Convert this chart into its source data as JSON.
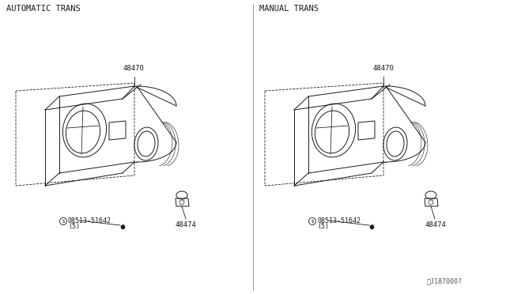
{
  "bg_color": "#ffffff",
  "line_color": "#1a1a1a",
  "fig_width": 6.4,
  "fig_height": 3.72,
  "dpi": 100,
  "left_label": "AUTOMATIC TRANS",
  "right_label": "MANUAL TRANS",
  "part_48470": "48470",
  "part_48474": "48474",
  "screw_label": "08513-51642",
  "screw_qty": "(5)",
  "diagram_number": "J187000?",
  "note_char": "␉"
}
